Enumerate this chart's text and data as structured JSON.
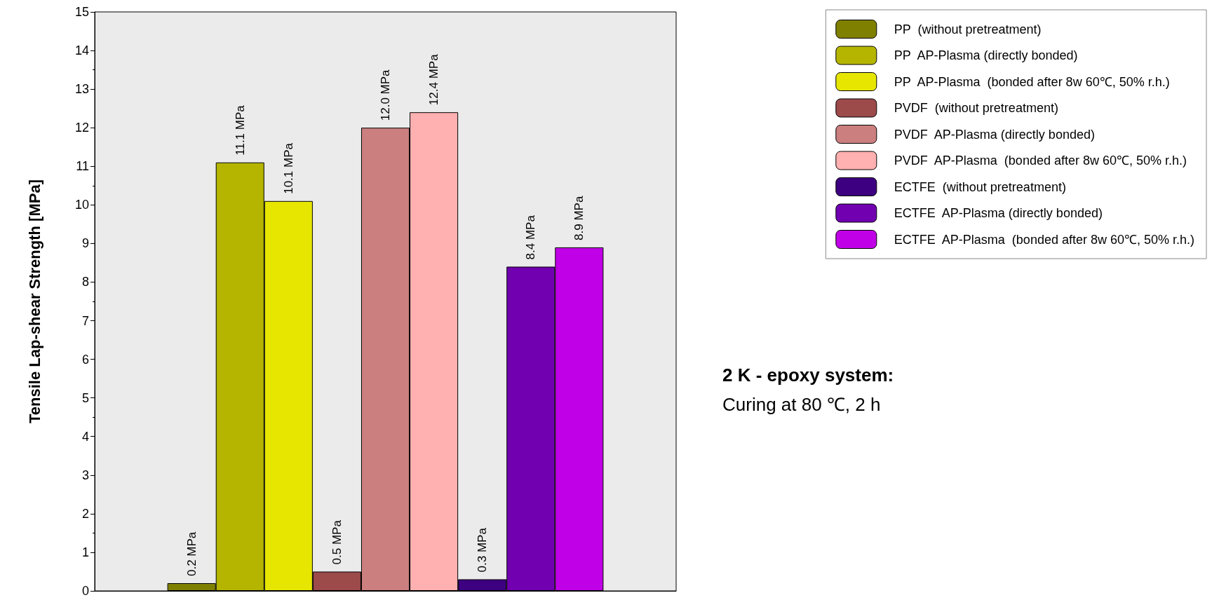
{
  "chart_data": {
    "type": "bar",
    "ylabel": "Tensile Lap-shear Strength [MPa]",
    "categories": [
      null
    ],
    "series": [
      {
        "name": "PP  (without pretreatment)",
        "color": "#808000",
        "values": [
          0.2
        ],
        "value_labels": [
          "0.2 MPa"
        ]
      },
      {
        "name": "PP  AP-Plasma (directly bonded)",
        "color": "#b5b500",
        "values": [
          11.1
        ],
        "value_labels": [
          "11.1 MPa"
        ]
      },
      {
        "name": "PP  AP-Plasma  (bonded after 8w 60℃, 50% r.h.)",
        "color": "#e6e600",
        "values": [
          10.1
        ],
        "value_labels": [
          "10.1 MPa"
        ]
      },
      {
        "name": "PVDF  (without pretreatment)",
        "color": "#9c4a4a",
        "values": [
          0.5
        ],
        "value_labels": [
          "0.5 MPa"
        ]
      },
      {
        "name": "PVDF  AP-Plasma (directly bonded)",
        "color": "#cc7f7f",
        "values": [
          12.0
        ],
        "value_labels": [
          "12.0 MPa"
        ]
      },
      {
        "name": "PVDF  AP-Plasma  (bonded after 8w 60℃, 50% r.h.)",
        "color": "#ffb0b0",
        "values": [
          12.4
        ],
        "value_labels": [
          "12.4 MPa"
        ]
      },
      {
        "name": "ECTFE  (without pretreatment)",
        "color": "#3d0080",
        "values": [
          0.3
        ],
        "value_labels": [
          "0.3 MPa"
        ]
      },
      {
        "name": "ECTFE  AP-Plasma (directly bonded)",
        "color": "#7000b0",
        "values": [
          8.4
        ],
        "value_labels": [
          "8.4 MPa"
        ]
      },
      {
        "name": "ECTFE  AP-Plasma  (bonded after 8w 60℃, 50% r.h.)",
        "color": "#c000e6",
        "values": [
          8.9
        ],
        "value_labels": [
          "8.9 MPa"
        ]
      }
    ],
    "ylim": [
      0,
      15
    ],
    "yticks": [
      0,
      1,
      2,
      3,
      4,
      5,
      6,
      7,
      8,
      9,
      10,
      11,
      12,
      13,
      14,
      15
    ],
    "grid": false,
    "legend": "top right",
    "annotations": [
      "2 K - epoxy system:",
      "Curing at 80 ℃, 2 h"
    ]
  }
}
